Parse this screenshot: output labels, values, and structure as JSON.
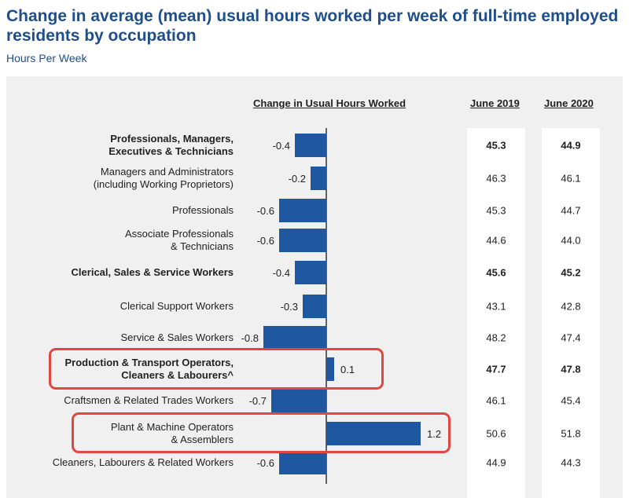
{
  "title": "Change in average (mean) usual hours worked per week of full-time employed residents by occupation",
  "subtitle": "Hours Per Week",
  "headers": {
    "change": "Change in Usual Hours Worked",
    "june2019": "June 2019",
    "june2020": "June 2020"
  },
  "colors": {
    "bar": "#1f57a0",
    "highlight": "#e0483f",
    "title": "#1f4e8c"
  },
  "highlighted_rows": [
    7,
    9
  ],
  "chart_data": {
    "type": "bar",
    "orientation": "horizontal",
    "title": "Change in average (mean) usual hours worked per week of full-time employed residents by occupation",
    "subtitle": "Hours Per Week",
    "xlabel": "Change in Usual Hours Worked",
    "categories": [
      "Professionals, Managers,\nExecutives & Technicians",
      "Managers and Administrators\n(including Working Proprietors)",
      "Professionals",
      "Associate Professionals\n& Technicians",
      "Clerical, Sales & Service Workers",
      "Clerical Support Workers",
      "Service & Sales Workers",
      "Production & Transport Operators,\nCleaners & Labourers^",
      "Craftsmen & Related Trades Workers",
      "Plant & Machine Operators\n& Assemblers",
      "Cleaners, Labourers & Related Workers"
    ],
    "bold_categories": [
      0,
      4,
      7
    ],
    "values": [
      -0.4,
      -0.2,
      -0.6,
      -0.6,
      -0.4,
      -0.3,
      -0.8,
      0.1,
      -0.7,
      1.2,
      -0.6
    ],
    "value_labels": [
      "-0.4",
      "-0.2",
      "-0.6",
      "-0.6",
      "-0.4",
      "-0.3",
      "-0.8",
      "0.1",
      "-0.7",
      "1.2",
      "-0.6"
    ],
    "xlim": [
      -0.8,
      1.2
    ],
    "table": {
      "June 2019": [
        "45.3",
        "46.3",
        "45.3",
        "44.6",
        "45.6",
        "43.1",
        "48.2",
        "47.7",
        "46.1",
        "50.6",
        "44.9"
      ],
      "June 2020": [
        "44.9",
        "46.1",
        "44.7",
        "44.0",
        "45.2",
        "42.8",
        "47.4",
        "47.8",
        "45.4",
        "51.8",
        "44.3"
      ]
    },
    "grid": false,
    "legend": "none"
  }
}
